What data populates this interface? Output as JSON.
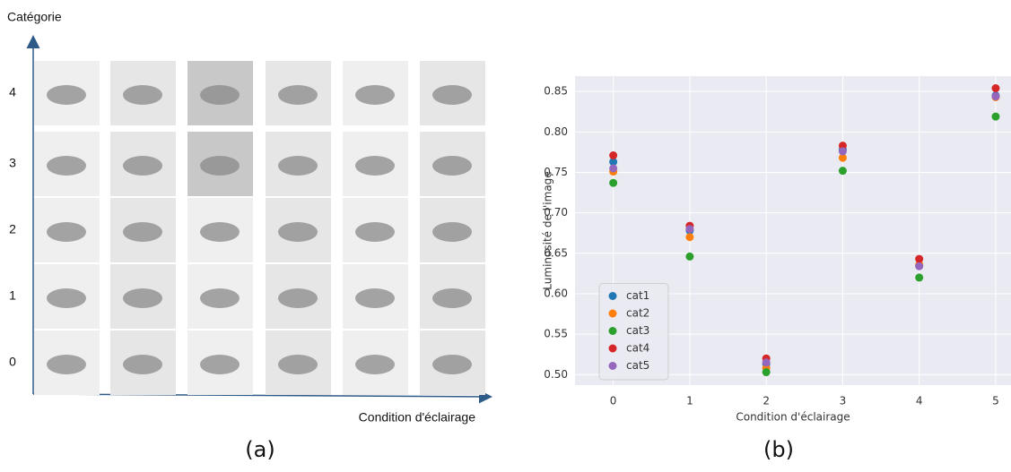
{
  "panel_a": {
    "y_label": "Catégorie",
    "x_label": "Condition d'éclairage",
    "row_labels": [
      "4",
      "3",
      "2",
      "1",
      "0"
    ],
    "caption": "(a)"
  },
  "chart_data": {
    "type": "scatter",
    "caption": "(b)",
    "x_label": "Condition d'éclairage",
    "y_label": "Luminosité de l'image",
    "x": [
      0,
      1,
      2,
      3,
      4,
      5
    ],
    "series": [
      {
        "name": "cat1",
        "color": "#1f77b4",
        "values": [
          0.763,
          0.678,
          0.513,
          0.778,
          0.635,
          0.845
        ]
      },
      {
        "name": "cat2",
        "color": "#ff7f0e",
        "values": [
          0.751,
          0.67,
          0.508,
          0.768,
          0.636,
          0.843
        ]
      },
      {
        "name": "cat3",
        "color": "#2ca02c",
        "values": [
          0.737,
          0.646,
          0.503,
          0.752,
          0.62,
          0.819
        ]
      },
      {
        "name": "cat4",
        "color": "#d62728",
        "values": [
          0.771,
          0.684,
          0.52,
          0.783,
          0.643,
          0.854
        ]
      },
      {
        "name": "cat5",
        "color": "#9467bd",
        "values": [
          0.755,
          0.68,
          0.515,
          0.776,
          0.634,
          0.844
        ]
      }
    ],
    "xlim": [
      -0.5,
      5.2
    ],
    "ylim": [
      0.487,
      0.869
    ],
    "xticks": [
      0,
      1,
      2,
      3,
      4,
      5
    ],
    "yticks": [
      {
        "value": 0.5,
        "label": "0.50"
      },
      0.55,
      {
        "value": 0.6,
        "label": "0.60"
      },
      0.65,
      {
        "value": 0.7,
        "label": "0.70"
      },
      0.75,
      {
        "value": 0.8,
        "label": "0.80"
      },
      0.85
    ],
    "grid": true,
    "legend": "lower left"
  }
}
